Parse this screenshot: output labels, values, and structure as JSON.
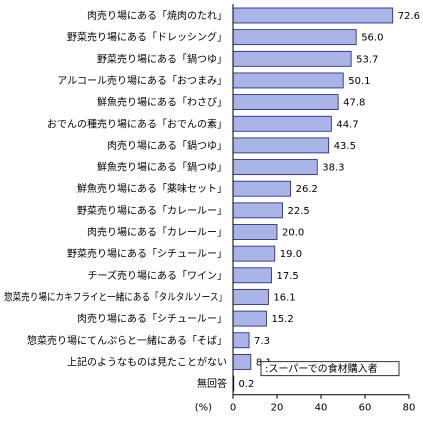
{
  "chart_data": {
    "type": "bar",
    "orientation": "horizontal",
    "categories": [
      "肉売り場にある「焼肉のたれ」",
      "野菜売り場にある「ドレッシング」",
      "野菜売り場にある「鍋つゆ」",
      "アルコール売り場にある「おつまみ」",
      "鮮魚売り場にある「わさび」",
      "おでんの種売り場にある「おでんの素」",
      "肉売り場にある「鍋つゆ」",
      "鮮魚売り場にある「鍋つゆ」",
      "鮮魚売り場にある「薬味セット」",
      "野菜売り場にある「カレールー」",
      "肉売り場にある「カレールー」",
      "野菜売り場にある「シチュールー」",
      "チーズ売り場にある「ワイン」",
      "惣菜売り場にカキフライと一緒にある「タルタルソース」",
      "肉売り場にある「シチュールー」",
      "惣菜売り場にてんぷらと一緒にある「そば」",
      "上記のようなものは見たことがない",
      "無回答"
    ],
    "values": [
      72.6,
      56.0,
      53.7,
      50.1,
      47.8,
      44.7,
      43.5,
      38.3,
      26.2,
      22.5,
      20.0,
      19.0,
      17.5,
      16.1,
      15.2,
      7.3,
      8.1,
      0.2
    ],
    "value_labels": [
      "72.6",
      "56.0",
      "53.7",
      "50.1",
      "47.8",
      "44.7",
      "43.5",
      "38.3",
      "26.2",
      "22.5",
      "20.0",
      "19.0",
      "17.5",
      "16.1",
      "15.2",
      "7.3",
      "8.1",
      "0.2"
    ],
    "xlabel": "(%)",
    "xlim": [
      0,
      80
    ],
    "x_ticks": [
      "0",
      "20",
      "40",
      "60",
      "80"
    ],
    "legend": ":スーパーでの食材購入者",
    "legend_position": "bottom-right",
    "bar_color": "#a9b5e6",
    "bar_edge_color": "#1a1a8c",
    "grid": false
  }
}
